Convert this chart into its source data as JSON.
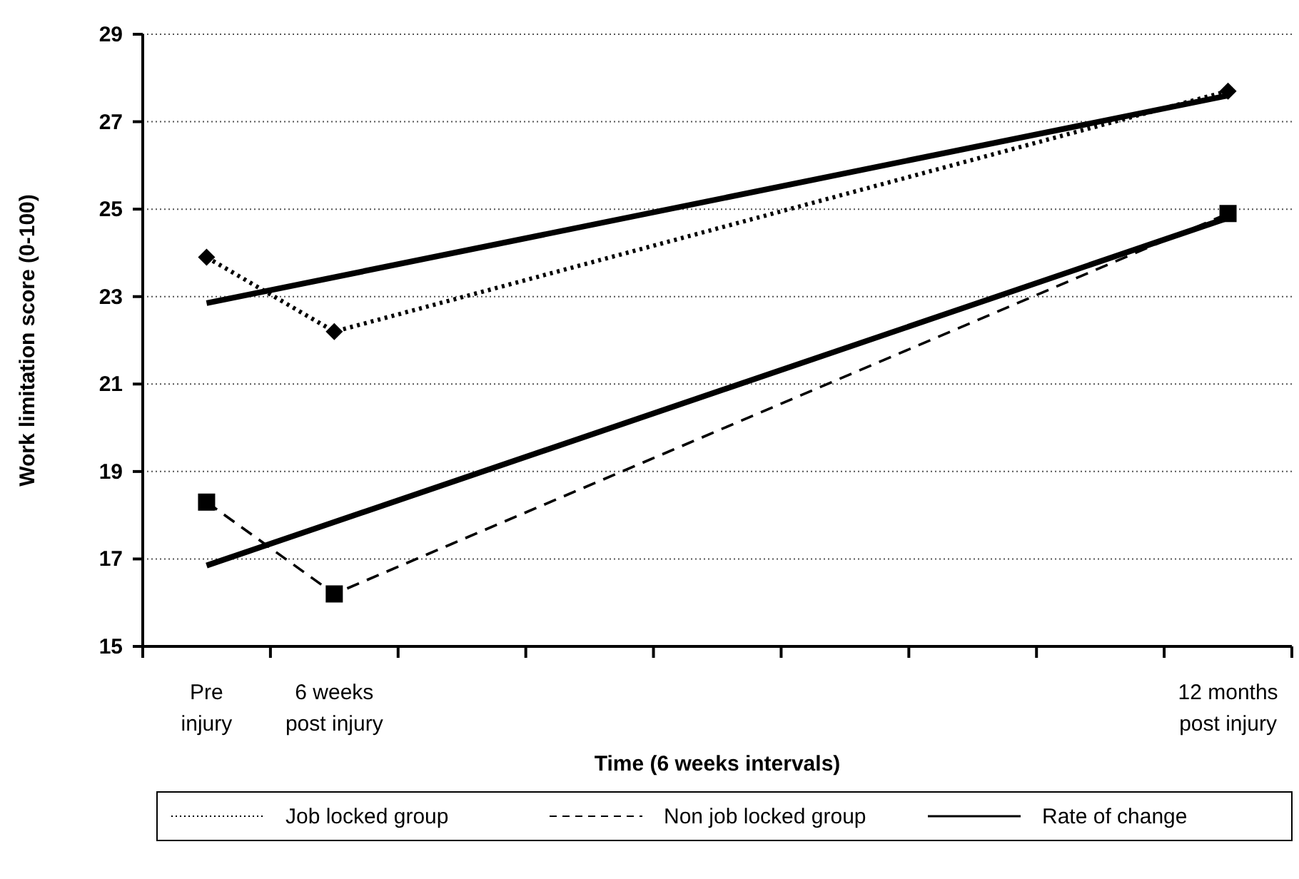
{
  "chart_data": {
    "type": "line",
    "xlabel": "Time (6 weeks intervals)",
    "ylabel": "Work limitation score (0-100)",
    "categories": [
      "Pre injury",
      "6 weeks post injury",
      null,
      null,
      null,
      null,
      null,
      null,
      "12 months post injury"
    ],
    "ylim": [
      15,
      29
    ],
    "yticks": [
      15,
      17,
      19,
      21,
      23,
      25,
      27,
      29
    ],
    "grid": "y",
    "legend": "bottom",
    "series": [
      {
        "name": "Job locked group",
        "color": "#000000",
        "line_style": "dotted",
        "marker": "diamond",
        "values": [
          23.9,
          22.2,
          null,
          null,
          null,
          null,
          null,
          null,
          27.7
        ]
      },
      {
        "name": "Non job locked group",
        "color": "#000000",
        "line_style": "dashed",
        "marker": "square",
        "values": [
          18.3,
          16.2,
          null,
          null,
          null,
          null,
          null,
          null,
          24.9
        ]
      },
      {
        "name": "Rate of change",
        "color": "#000000",
        "line_style": "solid",
        "marker": "none",
        "values": [
          22.85,
          null,
          null,
          null,
          null,
          null,
          null,
          null,
          27.6
        ]
      },
      {
        "color": "#000000",
        "line_style": "solid",
        "marker": "none",
        "values": [
          16.85,
          null,
          null,
          null,
          null,
          null,
          null,
          null,
          24.8
        ]
      }
    ]
  }
}
